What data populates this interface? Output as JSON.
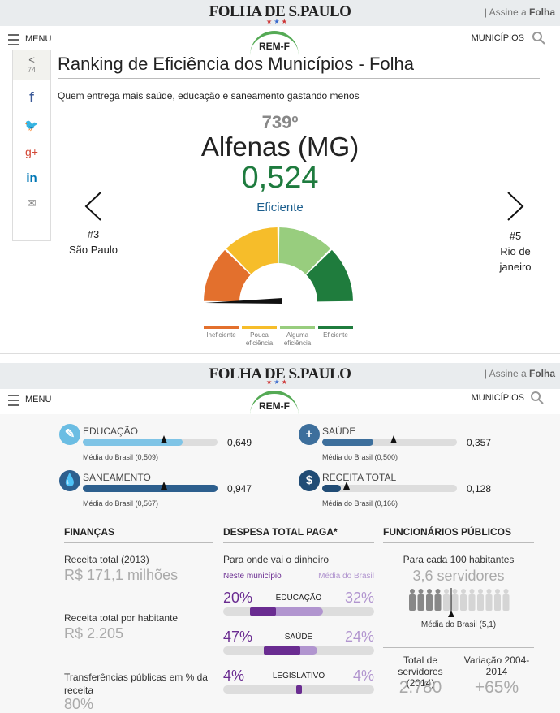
{
  "top": {
    "header": {
      "logo": "FOLHA DE S.PAULO",
      "subscribe": "| Assine a",
      "subscribe_brand": "Folha",
      "menu": "MENU",
      "badge": "REM-F",
      "municipios": "MUNICÍPIOS"
    },
    "share_count": "74",
    "title": "Ranking de Eficiência dos Municípios - Folha",
    "subtitle": "Quem entrega mais saúde, educação e saneamento gastando menos",
    "rank": "739º",
    "city": "Alfenas (MG)",
    "score": "0,524",
    "class": "Eficiente",
    "prev": {
      "rank": "#3",
      "name": "São Paulo"
    },
    "next": {
      "rank": "#5",
      "name": "Rio de janeiro"
    },
    "gauge_legend": [
      "Ineficiente",
      "Pouca eficiência",
      "Alguma eficiência",
      "Eficiente"
    ]
  },
  "bottom": {
    "header": {
      "logo": "FOLHA DE S.PAULO",
      "subscribe": "| Assine a",
      "subscribe_brand": "Folha",
      "menu": "MENU",
      "badge": "REM-F",
      "municipios": "MUNICÍPIOS"
    },
    "indicators": [
      {
        "label": "EDUCAÇÃO",
        "value": "0,649",
        "mean": "Média do Brasil (0,509)"
      },
      {
        "label": "SAÚDE",
        "value": "0,357",
        "mean": "Média do Brasil (0,500)"
      },
      {
        "label": "SANEAMENTO",
        "value": "0,947",
        "mean": "Média do Brasil (0,567)"
      },
      {
        "label": "RECEITA TOTAL",
        "value": "0,128",
        "mean": "Média do Brasil (0,166)"
      }
    ],
    "financas": {
      "title": "FINANÇAS",
      "items": [
        {
          "label": "Receita total (2013)",
          "value": "R$ 171,1 milhões"
        },
        {
          "label": "Receita total por habitante",
          "value": "R$ 2.205"
        },
        {
          "label": "Transferências públicas em % da receita",
          "value": "80%"
        }
      ]
    },
    "despesa": {
      "title": "DESPESA TOTAL PAGA*",
      "subtitle": "Para onde vai o dinheiro",
      "legend_local": "Neste município",
      "legend_brazil": "Média do Brasil",
      "rows": [
        {
          "name": "EDUCAÇÃO",
          "local": "20%",
          "brazil": "32%"
        },
        {
          "name": "SAÚDE",
          "local": "47%",
          "brazil": "24%"
        },
        {
          "name": "LEGISLATIVO",
          "local": "4%",
          "brazil": "4%"
        }
      ]
    },
    "funcionarios": {
      "title": "FUNCIONÁRIOS PÚBLICOS",
      "subtitle": "Para cada 100 habitantes",
      "value": "3,6 servidores",
      "mean": "Média do Brasil (5,1)",
      "total_label": "Total de servidores (2014)",
      "total": "2.780",
      "var_label": "Variação 2004-2014",
      "var": "+65%"
    }
  }
}
